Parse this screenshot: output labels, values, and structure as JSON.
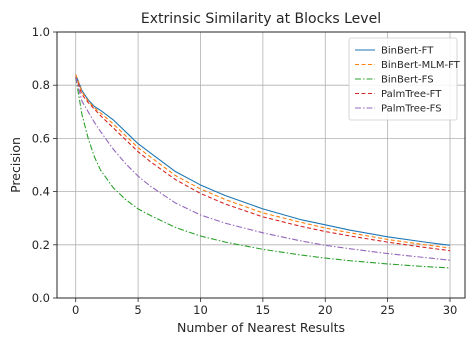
{
  "chart_data": {
    "type": "line",
    "title": "Extrinsic Similarity at Blocks Level",
    "xlabel": "Number of Nearest Results",
    "ylabel": "Precision",
    "xlim": [
      -1.5,
      31.2
    ],
    "ylim": [
      0.0,
      1.0
    ],
    "xticks": [
      0,
      5,
      10,
      15,
      20,
      25,
      30
    ],
    "xtick_labels": [
      "0",
      "5",
      "10",
      "15",
      "20",
      "25",
      "30"
    ],
    "yticks": [
      0.0,
      0.2,
      0.4,
      0.6,
      0.8,
      1.0
    ],
    "ytick_labels": [
      "0.0",
      "0.2",
      "0.4",
      "0.6",
      "0.8",
      "1.0"
    ],
    "grid": true,
    "legend_position": "top-right",
    "x": [
      0,
      0.5,
      1,
      1.5,
      2,
      3,
      4,
      5,
      6,
      8,
      10,
      12,
      15,
      18,
      20,
      22,
      25,
      28,
      30
    ],
    "series": [
      {
        "name": "BinBert-FT",
        "color": "#1f77b4",
        "dash": "solid",
        "values": [
          0.84,
          0.78,
          0.745,
          0.72,
          0.705,
          0.67,
          0.625,
          0.58,
          0.545,
          0.475,
          0.425,
          0.385,
          0.335,
          0.295,
          0.275,
          0.255,
          0.23,
          0.21,
          0.198
        ]
      },
      {
        "name": "BinBert-MLM-FT",
        "color": "#ff7f0e",
        "dash": "dashed",
        "values": [
          0.84,
          0.775,
          0.74,
          0.715,
          0.695,
          0.655,
          0.61,
          0.565,
          0.53,
          0.46,
          0.41,
          0.37,
          0.32,
          0.285,
          0.263,
          0.245,
          0.22,
          0.2,
          0.188
        ]
      },
      {
        "name": "BinBert-FS",
        "color": "#2ca02c",
        "dash": "dashdot",
        "values": [
          0.83,
          0.69,
          0.6,
          0.53,
          0.48,
          0.415,
          0.37,
          0.335,
          0.31,
          0.265,
          0.233,
          0.21,
          0.183,
          0.162,
          0.15,
          0.14,
          0.128,
          0.118,
          0.113
        ]
      },
      {
        "name": "PalmTree-FT",
        "color": "#d62728",
        "dash": "dashed",
        "values": [
          0.83,
          0.765,
          0.735,
          0.71,
          0.685,
          0.64,
          0.595,
          0.55,
          0.512,
          0.445,
          0.393,
          0.353,
          0.305,
          0.27,
          0.25,
          0.233,
          0.21,
          0.19,
          0.178
        ]
      },
      {
        "name": "PalmTree-FS",
        "color": "#9467bd",
        "dash": "dashdot",
        "values": [
          0.83,
          0.74,
          0.7,
          0.66,
          0.625,
          0.56,
          0.505,
          0.458,
          0.42,
          0.357,
          0.312,
          0.281,
          0.245,
          0.215,
          0.198,
          0.185,
          0.167,
          0.152,
          0.142
        ]
      }
    ]
  }
}
